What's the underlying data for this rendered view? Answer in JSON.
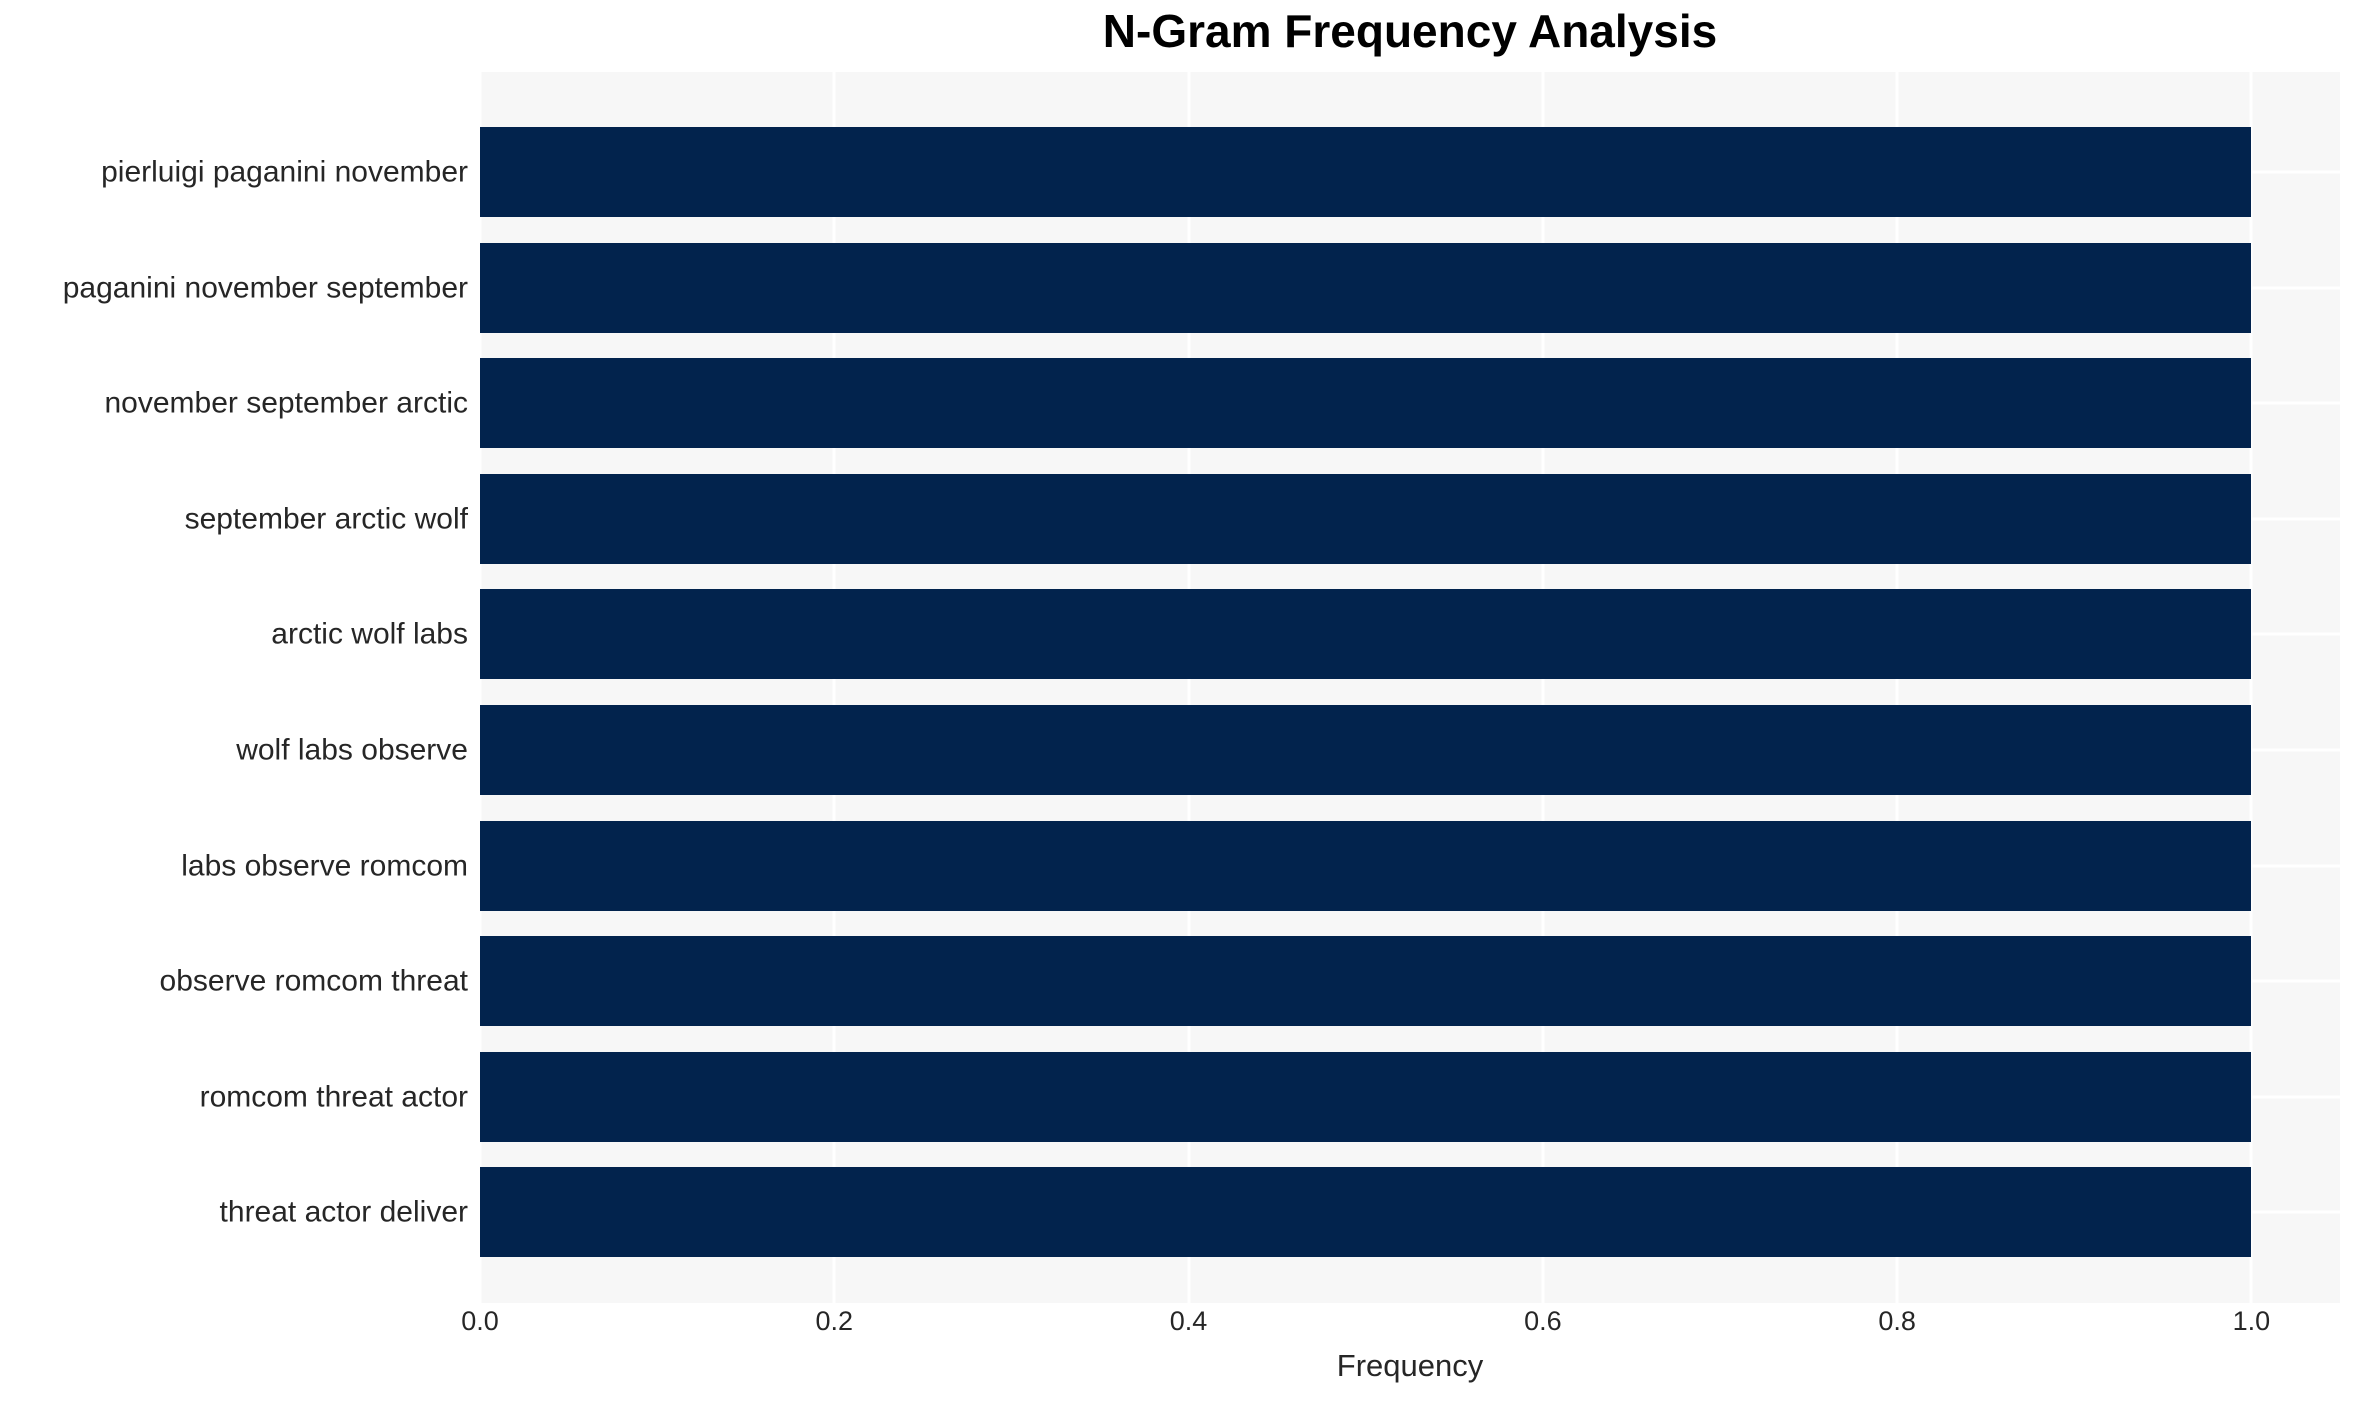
{
  "colors": {
    "bar": "#02234d",
    "plot_background": "#f7f7f7",
    "grid": "#ffffff",
    "tick_text": "#262626",
    "title_text": "#000000",
    "figure_background": "#ffffff"
  },
  "chart_data": {
    "type": "bar",
    "orientation": "horizontal",
    "title": "N-Gram Frequency Analysis",
    "categories": [
      "pierluigi paganini november",
      "paganini november september",
      "november september arctic",
      "september arctic wolf",
      "arctic wolf labs",
      "wolf labs observe",
      "labs observe romcom",
      "observe romcom threat",
      "romcom threat actor",
      "threat actor deliver"
    ],
    "values": [
      1.0,
      1.0,
      1.0,
      1.0,
      1.0,
      1.0,
      1.0,
      1.0,
      1.0,
      1.0
    ],
    "xlabel": "Frequency",
    "ylabel": "",
    "xlim": [
      0,
      1.05
    ],
    "xticks": [
      0.0,
      0.2,
      0.4,
      0.6,
      0.8,
      1.0
    ],
    "xtick_labels": [
      "0.0",
      "0.2",
      "0.4",
      "0.6",
      "0.8",
      "1.0"
    ],
    "grid": true,
    "legend_position": "none"
  }
}
